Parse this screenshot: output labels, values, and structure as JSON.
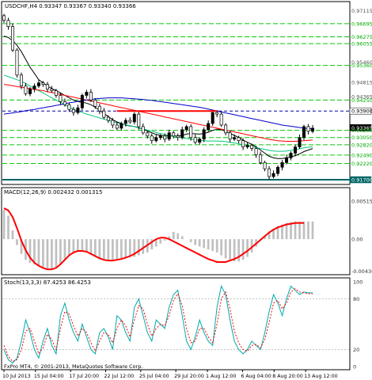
{
  "main": {
    "header": "USDCHF,H4  0.93347 0.93367 0.93340 0.93366",
    "price_labels": [
      {
        "text": "0.97115",
        "price": 0.97115,
        "style": "plain"
      },
      {
        "text": "0.96695",
        "price": 0.96695,
        "style": "green"
      },
      {
        "text": "0.96275",
        "price": 0.96275,
        "style": "green"
      },
      {
        "text": "0.96055",
        "price": 0.96055,
        "style": "green"
      },
      {
        "text": "0.95460",
        "price": 0.9546,
        "style": "plain"
      },
      {
        "text": "0.95360",
        "price": 0.9536,
        "style": "green"
      },
      {
        "text": "0.94815",
        "price": 0.94815,
        "style": "plain"
      },
      {
        "text": "0.94365",
        "price": 0.94365,
        "style": "plain"
      },
      {
        "text": "0.94250",
        "price": 0.9425,
        "style": "green"
      },
      {
        "text": "0.93900",
        "price": 0.939,
        "style": "white"
      },
      {
        "text": "0.93365",
        "price": 0.93365,
        "style": "black"
      },
      {
        "text": "0.93280",
        "price": 0.9328,
        "style": "green"
      },
      {
        "text": "0.93050",
        "price": 0.9305,
        "style": "green"
      },
      {
        "text": "0.92820",
        "price": 0.9282,
        "style": "green"
      },
      {
        "text": "0.92490",
        "price": 0.9249,
        "style": "green"
      },
      {
        "text": "0.92220",
        "price": 0.9222,
        "style": "green"
      },
      {
        "text": "0.91700",
        "price": 0.917,
        "style": "blue"
      }
    ],
    "green_levels": [
      0.96695,
      0.96275,
      0.96055,
      0.9536,
      0.9425,
      0.9328,
      0.9305,
      0.9282,
      0.9249,
      0.9222
    ],
    "hline_dashed": 0.939,
    "hline_solid": 0.917,
    "resistance": {
      "price": 0.939,
      "from_index": 26,
      "to_index": 49
    },
    "close": [
      0.968,
      0.966,
      0.9585,
      0.9505,
      0.947,
      0.9445,
      0.946,
      0.947,
      0.948,
      0.9475,
      0.946,
      0.9455,
      0.944,
      0.942,
      0.941,
      0.9395,
      0.9385,
      0.94,
      0.944,
      0.945,
      0.9425,
      0.9405,
      0.939,
      0.937,
      0.936,
      0.9345,
      0.9335,
      0.935,
      0.936,
      0.9355,
      0.938,
      0.934,
      0.932,
      0.931,
      0.9295,
      0.9305,
      0.931,
      0.93,
      0.932,
      0.931,
      0.9305,
      0.933,
      0.934,
      0.9305,
      0.929,
      0.93,
      0.933,
      0.935,
      0.9385,
      0.938,
      0.9345,
      0.932,
      0.93,
      0.9305,
      0.9295,
      0.9275,
      0.928,
      0.927,
      0.925,
      0.9225,
      0.9205,
      0.918,
      0.919,
      0.921,
      0.9225,
      0.924,
      0.9255,
      0.9275,
      0.9305,
      0.934,
      0.9325,
      0.9335
    ],
    "ma_black": [
      0.963,
      0.9625,
      0.9615,
      0.96,
      0.958,
      0.9555,
      0.953,
      0.951,
      0.949,
      0.948,
      0.947,
      0.9462,
      0.9455,
      0.9448,
      0.944,
      0.9432,
      0.9425,
      0.942,
      0.9418,
      0.9415,
      0.941,
      0.9402,
      0.9392,
      0.9382,
      0.9372,
      0.9362,
      0.9355,
      0.935,
      0.9345,
      0.9342,
      0.934,
      0.9336,
      0.9332,
      0.9326,
      0.932,
      0.9315,
      0.9312,
      0.931,
      0.931,
      0.931,
      0.931,
      0.9312,
      0.9316,
      0.9318,
      0.9317,
      0.9316,
      0.9318,
      0.9322,
      0.9328,
      0.9332,
      0.933,
      0.9325,
      0.9318,
      0.9312,
      0.9305,
      0.9297,
      0.929,
      0.9283,
      0.9275,
      0.9265,
      0.9255,
      0.9245,
      0.924,
      0.9238,
      0.9238,
      0.924,
      0.9243,
      0.9247,
      0.9253,
      0.926,
      0.9265,
      0.927
    ],
    "ma_green": [
      0.9505,
      0.95,
      0.9495,
      0.949,
      0.9485,
      0.9478,
      0.947,
      0.9462,
      0.9455,
      0.9448,
      0.944,
      0.9432,
      0.9425,
      0.9418,
      0.941,
      0.9402,
      0.9396,
      0.939,
      0.9385,
      0.938,
      0.9376,
      0.9372,
      0.9368,
      0.9364,
      0.936,
      0.9356,
      0.9352,
      0.9349,
      0.9346,
      0.9343,
      0.934,
      0.9337,
      0.9333,
      0.9329,
      0.9325,
      0.9321,
      0.9318,
      0.9315,
      0.9312,
      0.931,
      0.9307,
      0.9304,
      0.9302,
      0.93,
      0.9298,
      0.9296,
      0.9295,
      0.9294,
      0.9294,
      0.9294,
      0.9293,
      0.9292,
      0.929,
      0.9288,
      0.9285,
      0.9282,
      0.9279,
      0.9276,
      0.9273,
      0.927,
      0.9267,
      0.9264,
      0.9262,
      0.9261,
      0.9261,
      0.9262,
      0.9264,
      0.9266,
      0.9269,
      0.9272,
      0.9274,
      0.9276
    ],
    "ma_red": [
      0.9475,
      0.9473,
      0.9471,
      0.9468,
      0.9466,
      0.9464,
      0.9462,
      0.9459,
      0.9457,
      0.9455,
      0.9452,
      0.9449,
      0.9446,
      0.9443,
      0.944,
      0.9437,
      0.9434,
      0.9431,
      0.9428,
      0.9425,
      0.9422,
      0.9419,
      0.9416,
      0.9413,
      0.941,
      0.9407,
      0.9404,
      0.9401,
      0.9398,
      0.9395,
      0.9392,
      0.9389,
      0.9386,
      0.9383,
      0.938,
      0.9377,
      0.9374,
      0.9371,
      0.9368,
      0.9365,
      0.9362,
      0.9359,
      0.9356,
      0.9353,
      0.935,
      0.9347,
      0.9344,
      0.9341,
      0.9338,
      0.9335,
      0.9332,
      0.9329,
      0.9326,
      0.9323,
      0.932,
      0.9317,
      0.9314,
      0.9311,
      0.9308,
      0.9305,
      0.9302,
      0.9299,
      0.9297,
      0.9295,
      0.9294,
      0.9293,
      0.9293,
      0.9293,
      0.9294,
      0.9295,
      0.9296,
      0.9297
    ],
    "ma_blue": [
      0.938,
      0.9382,
      0.9384,
      0.9386,
      0.9388,
      0.9391,
      0.9393,
      0.9395,
      0.9398,
      0.94,
      0.9403,
      0.9405,
      0.9408,
      0.941,
      0.9413,
      0.9416,
      0.9418,
      0.9421,
      0.9423,
      0.9425,
      0.9427,
      0.9429,
      0.943,
      0.9431,
      0.9432,
      0.9432,
      0.9432,
      0.9432,
      0.9431,
      0.943,
      0.9429,
      0.9428,
      0.9427,
      0.9425,
      0.9424,
      0.9422,
      0.942,
      0.9418,
      0.9416,
      0.9414,
      0.9412,
      0.941,
      0.9408,
      0.9406,
      0.9404,
      0.9402,
      0.9399,
      0.9396,
      0.9393,
      0.939,
      0.9387,
      0.9384,
      0.9381,
      0.9378,
      0.9375,
      0.9372,
      0.9369,
      0.9366,
      0.9363,
      0.936,
      0.9357,
      0.9354,
      0.9351,
      0.9348,
      0.9345,
      0.9343,
      0.9341,
      0.9339,
      0.9337,
      0.9335,
      0.9334,
      0.9333
    ]
  },
  "macd": {
    "header": "MACD(12,26,9) 0.002432 0.001315",
    "labels": [
      {
        "text": "0.005157",
        "value": 0.005157
      },
      {
        "text": "0.00",
        "value": 0.0
      },
      {
        "text": "-0.00436",
        "value": -0.00436
      }
    ],
    "histogram": [
      0.004,
      0.0032,
      0.0012,
      -0.0008,
      -0.002,
      -0.0028,
      -0.0032,
      -0.0034,
      -0.0036,
      -0.0038,
      -0.004,
      -0.004,
      -0.0038,
      -0.0034,
      -0.0028,
      -0.0022,
      -0.0018,
      -0.0016,
      -0.0016,
      -0.0018,
      -0.0021,
      -0.0024,
      -0.0026,
      -0.0027,
      -0.0028,
      -0.0028,
      -0.0027,
      -0.0026,
      -0.0025,
      -0.0024,
      -0.0024,
      -0.0022,
      -0.002,
      -0.0018,
      -0.0014,
      -0.001,
      -0.0006,
      -0.0002,
      0.0004,
      0.001,
      0.0008,
      0.0004,
      0.0,
      -0.0004,
      -0.0008,
      -0.001,
      -0.0012,
      -0.0014,
      -0.0016,
      -0.0018,
      -0.0022,
      -0.0026,
      -0.0028,
      -0.003,
      -0.003,
      -0.0028,
      -0.0024,
      -0.0018,
      -0.001,
      -0.0002,
      0.0004,
      0.001,
      0.0014,
      0.0018,
      0.002,
      0.0022,
      0.0023,
      0.0024,
      0.0024,
      0.0024,
      0.0024,
      0.0024
    ],
    "signal": [
      0.0042,
      0.0039,
      0.003,
      0.0015,
      -0.0002,
      -0.0015,
      -0.0025,
      -0.0032,
      -0.0036,
      -0.0039,
      -0.0041,
      -0.0041,
      -0.0039,
      -0.0034,
      -0.0028,
      -0.0022,
      -0.0018,
      -0.0016,
      -0.0016,
      -0.0017,
      -0.002,
      -0.0023,
      -0.0026,
      -0.0028,
      -0.0029,
      -0.0029,
      -0.0028,
      -0.0027,
      -0.0025,
      -0.0023,
      -0.002,
      -0.0016,
      -0.0012,
      -0.0008,
      -0.0004,
      0.0,
      0.0002,
      0.0002,
      0.0,
      -0.0003,
      -0.0006,
      -0.0009,
      -0.0012,
      -0.0015,
      -0.0018,
      -0.0021,
      -0.0024,
      -0.0027,
      -0.0029,
      -0.0031,
      -0.0031,
      -0.0031,
      -0.0029,
      -0.0027,
      -0.0024,
      -0.002,
      -0.0016,
      -0.0011,
      -0.0006,
      -0.0001,
      0.0004,
      0.0009,
      0.0013,
      0.0016,
      0.0018,
      0.002,
      0.0021,
      0.0022,
      0.0022,
      0.0022,
      0.0013,
      0.0013
    ]
  },
  "stoch": {
    "header": "Stoch(13,3,3) 87.4253 86.4253",
    "labels": [
      {
        "text": "100",
        "value": 100
      },
      {
        "text": "80",
        "value": 80
      },
      {
        "text": "20",
        "value": 20
      },
      {
        "text": "0",
        "value": 0
      }
    ],
    "main": [
      20,
      8,
      4,
      10,
      30,
      55,
      40,
      20,
      10,
      30,
      45,
      25,
      15,
      60,
      75,
      55,
      40,
      30,
      50,
      35,
      20,
      15,
      40,
      45,
      35,
      20,
      60,
      55,
      40,
      30,
      70,
      80,
      60,
      40,
      30,
      55,
      50,
      45,
      70,
      85,
      90,
      60,
      30,
      20,
      35,
      55,
      40,
      30,
      25,
      70,
      95,
      85,
      55,
      30,
      20,
      15,
      20,
      30,
      25,
      20,
      40,
      65,
      85,
      75,
      60,
      80,
      95,
      90,
      85,
      88,
      87,
      87
    ],
    "signal": [
      25,
      12,
      6,
      8,
      20,
      42,
      45,
      30,
      15,
      22,
      38,
      32,
      20,
      45,
      65,
      62,
      48,
      36,
      45,
      40,
      28,
      18,
      30,
      40,
      38,
      28,
      45,
      55,
      48,
      35,
      55,
      72,
      68,
      50,
      36,
      45,
      50,
      48,
      60,
      78,
      86,
      72,
      45,
      28,
      30,
      45,
      45,
      35,
      28,
      50,
      80,
      88,
      68,
      42,
      28,
      20,
      18,
      25,
      26,
      22,
      32,
      52,
      75,
      78,
      68,
      75,
      88,
      92,
      88,
      87,
      86,
      86
    ]
  },
  "xaxis": [
    {
      "text": "10 Jul 2013",
      "index": 0
    },
    {
      "text": "15 Jul 04:00",
      "index": 9
    },
    {
      "text": "17 Jul 20:00",
      "index": 19
    },
    {
      "text": "22 Jul 12:00",
      "index": 29
    },
    {
      "text": "25 Jul 04:00",
      "index": 39
    },
    {
      "text": "29 Jul 20:00",
      "index": 49
    },
    {
      "text": "1 Aug 12:00",
      "index": 58
    },
    {
      "text": "6 Aug 04:00",
      "index": 68
    },
    {
      "text": "8 Aug 20:00",
      "index": 77
    },
    {
      "text": "13 Aug 12:00",
      "index": 86
    }
  ],
  "footer": "FxPro MT4,  © 2001-2013, MetaQuotes Software Corp.",
  "colors": {
    "background": "#ffffff",
    "bull_candle": "#000000",
    "bear_candle": "#ffffff",
    "ma_black": "#000000",
    "ma_green": "#00c87a",
    "ma_red": "#ff0000",
    "ma_blue": "#0000cc",
    "green_levels": "#00cc00",
    "hline_dashed": "#0000aa",
    "hline_solid": "#006666",
    "resistance": "#ff0000",
    "macd_hist": "#c0c0c0",
    "macd_signal": "#ff0000",
    "stoch_main": "#00aaaa",
    "stoch_signal": "#ff0000",
    "frame": "#000000",
    "label_black_bg": "#000000",
    "label_blue_bg": "#006666"
  }
}
